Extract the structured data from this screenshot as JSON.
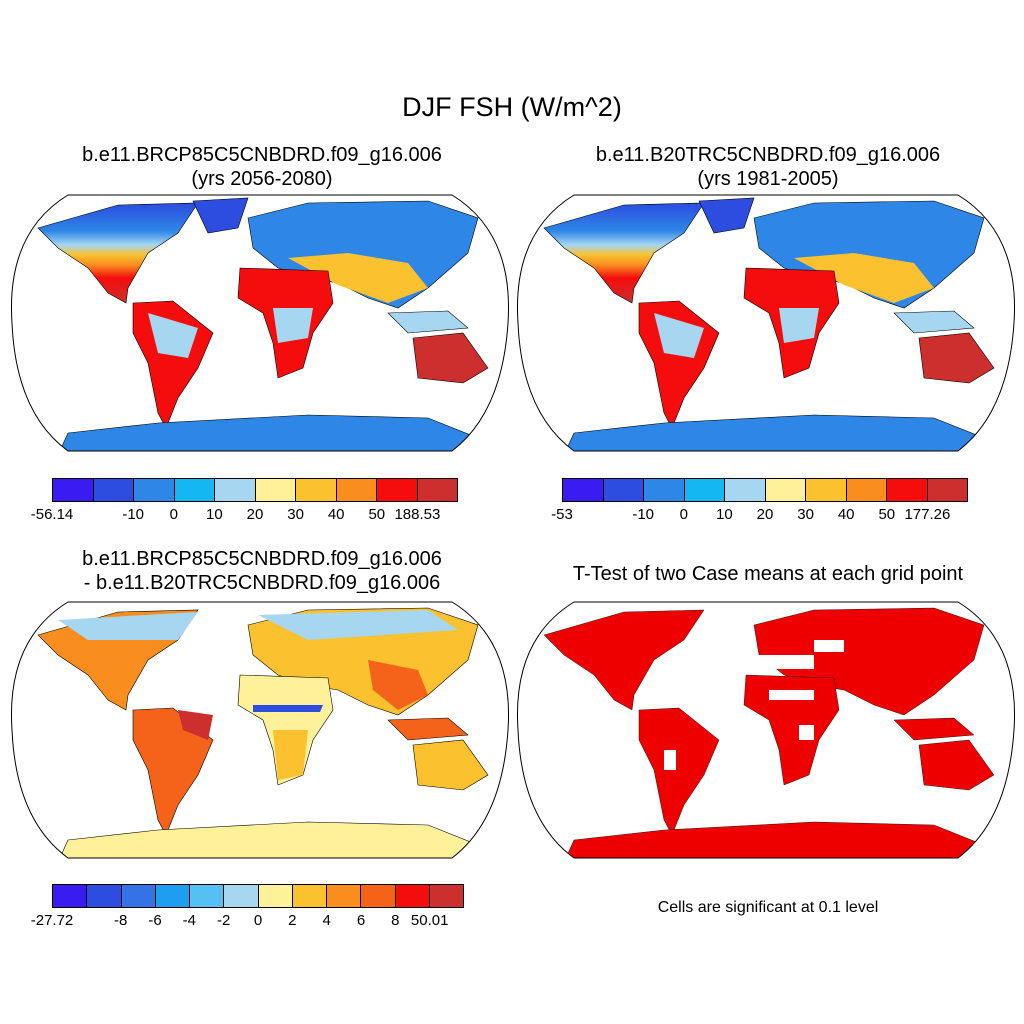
{
  "title": "DJF FSH (W/m^2)",
  "colors": {
    "land_blue": "#2f6fe0",
    "land_lightblue": "#9fd3f5",
    "land_yellow": "#fff0a0",
    "land_orange": "#fca53c",
    "land_red": "#e8221b",
    "land_darkred": "#c8302a",
    "sig_red": "#ee0000"
  },
  "panels": [
    {
      "title_line1": "b.e11.BRCP85C5CNBDRD.f09_g16.006",
      "title_line2": "(yrs 2056-2080)",
      "colorbar": {
        "colors": [
          "#3a1cf0",
          "#2c4de0",
          "#2e86e6",
          "#14b7f2",
          "#a6d6f0",
          "#fff199",
          "#fbc12f",
          "#f98e1f",
          "#f50c0c",
          "#cc2f2d"
        ],
        "labels": [
          "-56.14",
          "-10",
          "0",
          "10",
          "20",
          "30",
          "40",
          "50",
          "188.53"
        ]
      }
    },
    {
      "title_line1": "b.e11.B20TRC5CNBDRD.f09_g16.006",
      "title_line2": "(yrs 1981-2005)",
      "colorbar": {
        "colors": [
          "#3a1cf0",
          "#2c4de0",
          "#2e86e6",
          "#14b7f2",
          "#a6d6f0",
          "#fff199",
          "#fbc12f",
          "#f98e1f",
          "#f50c0c",
          "#cc2f2d"
        ],
        "labels": [
          "-53",
          "-10",
          "0",
          "10",
          "20",
          "30",
          "40",
          "50",
          "177.26"
        ]
      }
    },
    {
      "title_line1": "b.e11.BRCP85C5CNBDRD.f09_g16.006",
      "title_line2": "- b.e11.B20TRC5CNBDRD.f09_g16.006",
      "colorbar": {
        "colors": [
          "#3a1cf0",
          "#2c4de0",
          "#3473e6",
          "#1d9ef0",
          "#56c0f2",
          "#a6d6f0",
          "#fff199",
          "#fbc12f",
          "#f98e1f",
          "#f5631a",
          "#f50c0c",
          "#cc2f2d"
        ],
        "labels": [
          "-27.72",
          "-8",
          "-6",
          "-4",
          "-2",
          "0",
          "2",
          "4",
          "6",
          "8",
          "50.01"
        ]
      }
    },
    {
      "title_line1": "T-Test of two Case means at each grid point",
      "note": "Cells are significant at 0.1 level"
    }
  ]
}
